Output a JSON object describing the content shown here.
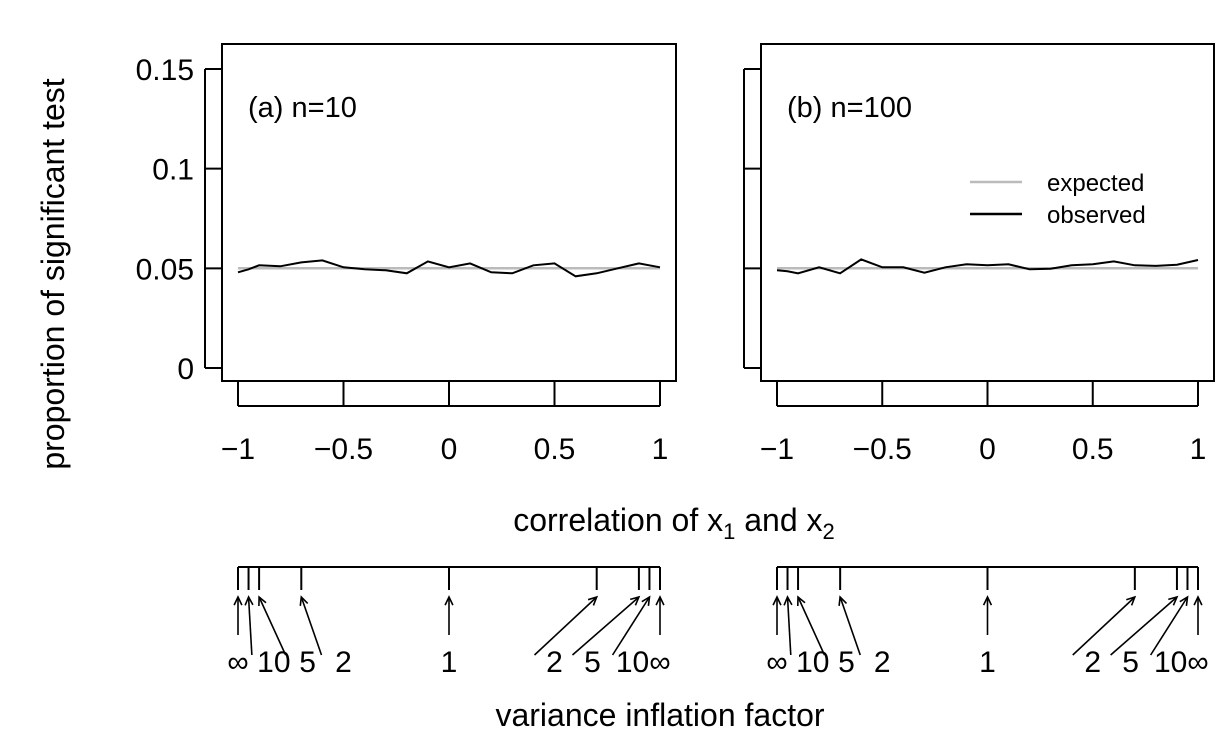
{
  "chart_data": [
    {
      "type": "line",
      "panel_label": "(a) n=10",
      "xlabel_text": "correlation of x",
      "xlabel_sub1": "1",
      "xlabel_and": " and x",
      "xlabel_sub2": "2",
      "ylabel": "proportion of significant test",
      "xlim": [
        -1,
        1
      ],
      "ylim": [
        0,
        0.15
      ],
      "x_ticks": [
        -1,
        -0.5,
        0,
        0.5,
        1
      ],
      "x_tick_labels": [
        "−1",
        "−0.5",
        "0",
        "0.5",
        "1"
      ],
      "y_ticks": [
        0,
        0.05,
        0.1,
        0.15
      ],
      "y_tick_labels": [
        "0",
        "0.05",
        "0.1",
        "0.15"
      ],
      "series": [
        {
          "name": "expected",
          "color": "#bbbbbb",
          "x": [
            -1,
            1
          ],
          "y": [
            0.05,
            0.05
          ]
        },
        {
          "name": "observed",
          "color": "#000000",
          "x": [
            -1,
            -0.95,
            -0.9,
            -0.8,
            -0.7,
            -0.6,
            -0.5,
            -0.4,
            -0.3,
            -0.2,
            -0.1,
            0,
            0.1,
            0.2,
            0.3,
            0.4,
            0.5,
            0.6,
            0.7,
            0.8,
            0.9,
            1
          ],
          "y": [
            0.048,
            0.0495,
            0.0515,
            0.051,
            0.053,
            0.054,
            0.0505,
            0.0495,
            0.049,
            0.0475,
            0.0535,
            0.0505,
            0.0525,
            0.048,
            0.0475,
            0.0515,
            0.0525,
            0.046,
            0.0475,
            0.05,
            0.0525,
            0.0505
          ]
        }
      ],
      "grid": false
    },
    {
      "type": "line",
      "panel_label": "(b) n=100",
      "xlim": [
        -1,
        1
      ],
      "ylim": [
        0,
        0.15
      ],
      "x_ticks": [
        -1,
        -0.5,
        0,
        0.5,
        1
      ],
      "x_tick_labels": [
        "−1",
        "−0.5",
        "0",
        "0.5",
        "1"
      ],
      "y_ticks": [
        0,
        0.05,
        0.1,
        0.15
      ],
      "legend": {
        "placement": "right",
        "entries": [
          "expected",
          "observed"
        ]
      },
      "series": [
        {
          "name": "expected",
          "color": "#bbbbbb",
          "x": [
            -1,
            1
          ],
          "y": [
            0.05,
            0.05
          ]
        },
        {
          "name": "observed",
          "color": "#000000",
          "x": [
            -1,
            -0.95,
            -0.9,
            -0.8,
            -0.7,
            -0.6,
            -0.5,
            -0.4,
            -0.3,
            -0.2,
            -0.1,
            0,
            0.1,
            0.2,
            0.3,
            0.4,
            0.5,
            0.6,
            0.7,
            0.8,
            0.9,
            1
          ],
          "y": [
            0.049,
            0.0485,
            0.0475,
            0.0505,
            0.0475,
            0.0545,
            0.0505,
            0.0505,
            0.0478,
            0.0505,
            0.052,
            0.0515,
            0.052,
            0.0495,
            0.0498,
            0.0515,
            0.052,
            0.0535,
            0.0515,
            0.0512,
            0.0518,
            0.0542
          ]
        }
      ],
      "grid": false
    }
  ],
  "vif_axis": {
    "title": "variance inflation factor",
    "labels": [
      "∞",
      "10",
      "5",
      "2",
      "1",
      "2",
      "5",
      "10",
      "∞"
    ],
    "tick_correlations": [
      -1,
      -0.95,
      -0.9,
      -0.7,
      0,
      0.7,
      0.9,
      0.95,
      1
    ],
    "arrow_label_pairs": [
      {
        "label_index": 0,
        "tick_index": 0
      },
      {
        "label_index": 1,
        "tick_index": 1
      },
      {
        "label_index": 2,
        "tick_index": 2
      },
      {
        "label_index": 3,
        "tick_index": 3
      },
      {
        "label_index": 4,
        "tick_index": 4
      },
      {
        "label_index": 5,
        "tick_index": 5
      },
      {
        "label_index": 6,
        "tick_index": 6
      },
      {
        "label_index": 7,
        "tick_index": 7
      },
      {
        "label_index": 8,
        "tick_index": 8
      }
    ]
  }
}
